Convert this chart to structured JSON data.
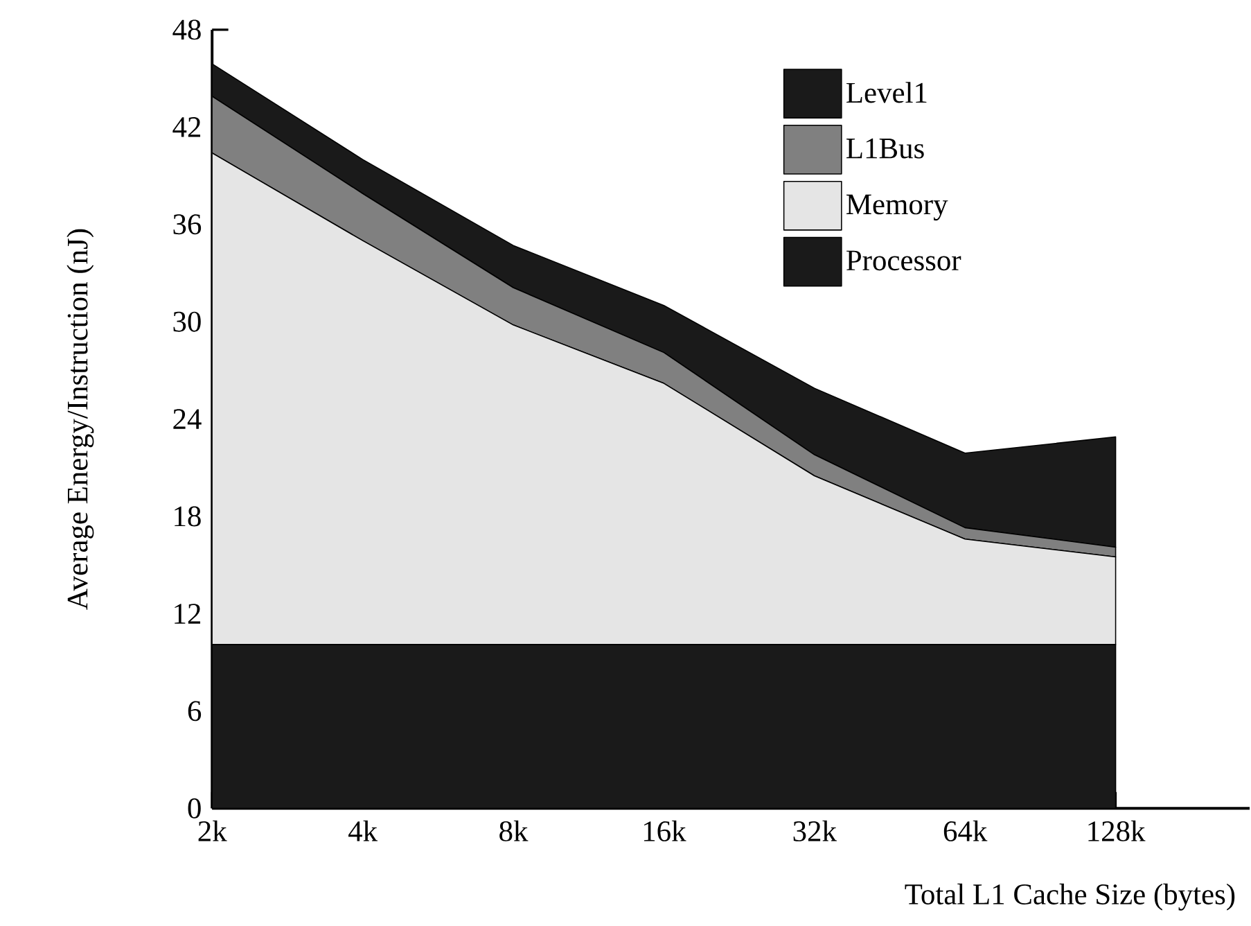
{
  "chart_data": {
    "type": "area",
    "stacked": true,
    "xlabel": "Total L1 Cache Size (bytes)",
    "ylabel": "Average Energy/Instruction (nJ)",
    "categories": [
      "2k",
      "4k",
      "8k",
      "16k",
      "32k",
      "64k",
      "128k"
    ],
    "series": [
      {
        "name": "Processor",
        "color": "#1a1a1a",
        "values": [
          10.1,
          10.1,
          10.1,
          10.1,
          10.1,
          10.1,
          10.1
        ]
      },
      {
        "name": "Memory",
        "color": "#e5e5e5",
        "values": [
          30.3,
          24.9,
          19.7,
          16.1,
          10.4,
          6.5,
          5.4
        ]
      },
      {
        "name": "L1Bus",
        "color": "#808080",
        "values": [
          3.5,
          2.9,
          2.3,
          1.9,
          1.3,
          0.7,
          0.6
        ]
      },
      {
        "name": "Level1",
        "color": "#1a1a1a",
        "values": [
          2.0,
          2.1,
          2.6,
          2.9,
          4.1,
          4.6,
          6.8
        ]
      }
    ],
    "ylim": [
      0,
      48
    ],
    "yticks": [
      0,
      6,
      12,
      18,
      24,
      30,
      36,
      42,
      48
    ],
    "legend": "top right",
    "grid": false
  }
}
